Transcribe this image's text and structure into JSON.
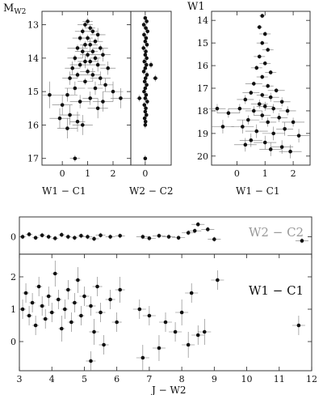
{
  "chart_data": [
    {
      "id": "cmd-mw2",
      "type": "scatter",
      "title": "",
      "ylabel": "M",
      "ylabel_sub": "W2",
      "xlabel": "W1 − C1",
      "xlim": [
        -0.8,
        2.7
      ],
      "ylim": [
        17.2,
        12.6
      ],
      "xticks": [
        0,
        1,
        2
      ],
      "yticks": [
        13,
        14,
        15,
        16,
        17
      ],
      "xtick_labels": [
        "0",
        "1",
        "2"
      ],
      "ytick_labels": [
        "13",
        "14",
        "15",
        "16",
        "17"
      ],
      "points": [
        [
          1.0,
          12.9,
          0.2,
          0.1
        ],
        [
          0.9,
          13.0,
          0.3,
          0.1
        ],
        [
          1.1,
          13.1,
          0.2,
          0.1
        ],
        [
          0.8,
          13.2,
          0.3,
          0.1
        ],
        [
          1.2,
          13.2,
          0.2,
          0.1
        ],
        [
          1.4,
          13.3,
          0.3,
          0.2
        ],
        [
          0.7,
          13.4,
          0.3,
          0.1
        ],
        [
          1.0,
          13.4,
          0.2,
          0.1
        ],
        [
          1.3,
          13.5,
          0.3,
          0.1
        ],
        [
          0.9,
          13.6,
          0.2,
          0.1
        ],
        [
          1.1,
          13.6,
          0.3,
          0.2
        ],
        [
          0.6,
          13.7,
          0.4,
          0.1
        ],
        [
          1.5,
          13.7,
          0.3,
          0.1
        ],
        [
          0.8,
          13.8,
          0.3,
          0.2
        ],
        [
          1.2,
          13.8,
          0.2,
          0.1
        ],
        [
          1.0,
          13.9,
          0.3,
          0.1
        ],
        [
          1.6,
          13.9,
          0.3,
          0.2
        ],
        [
          0.5,
          14.0,
          0.3,
          0.1
        ],
        [
          1.3,
          14.0,
          0.2,
          0.1
        ],
        [
          0.9,
          14.1,
          0.3,
          0.2
        ],
        [
          1.1,
          14.1,
          0.3,
          0.1
        ],
        [
          1.4,
          14.2,
          0.3,
          0.2
        ],
        [
          0.7,
          14.2,
          0.4,
          0.1
        ],
        [
          1.8,
          14.3,
          0.3,
          0.2
        ],
        [
          0.4,
          14.3,
          0.3,
          0.2
        ],
        [
          1.0,
          14.4,
          0.3,
          0.1
        ],
        [
          1.2,
          14.5,
          0.3,
          0.2
        ],
        [
          0.6,
          14.5,
          0.3,
          0.1
        ],
        [
          1.5,
          14.6,
          0.4,
          0.2
        ],
        [
          0.3,
          14.6,
          0.3,
          0.2
        ],
        [
          0.9,
          14.7,
          0.3,
          0.1
        ],
        [
          1.7,
          14.8,
          0.3,
          0.2
        ],
        [
          0.5,
          14.9,
          0.4,
          0.2
        ],
        [
          1.3,
          14.9,
          0.3,
          0.2
        ],
        [
          2.0,
          15.0,
          0.4,
          0.3
        ],
        [
          0.2,
          15.1,
          0.4,
          0.2
        ],
        [
          1.1,
          15.2,
          0.3,
          0.2
        ],
        [
          0.7,
          15.3,
          0.4,
          0.2
        ],
        [
          1.6,
          15.3,
          0.4,
          0.3
        ],
        [
          0.0,
          15.4,
          0.4,
          0.3
        ],
        [
          -0.1,
          15.8,
          0.4,
          0.3
        ],
        [
          0.3,
          15.7,
          0.4,
          0.3
        ],
        [
          0.6,
          15.9,
          0.3,
          0.3
        ],
        [
          1.4,
          15.5,
          0.4,
          0.3
        ],
        [
          -0.5,
          15.1,
          0.3,
          0.4
        ],
        [
          2.3,
          15.2,
          0.4,
          0.3
        ],
        [
          0.8,
          16.0,
          0.4,
          0.3
        ],
        [
          0.2,
          16.1,
          0.4,
          0.3
        ],
        [
          0.5,
          17.0,
          0.2,
          0.1
        ]
      ]
    },
    {
      "id": "cmd-w2c2",
      "type": "scatter",
      "title": "",
      "xlabel": "W2 − C2",
      "xlim": [
        -0.5,
        0.9
      ],
      "ylim": [
        17.2,
        12.6
      ],
      "xticks": [
        0
      ],
      "xtick_labels": [
        "0"
      ],
      "points": [
        [
          0.0,
          12.8,
          0.05,
          0.1
        ],
        [
          0.05,
          12.9,
          0.05,
          0.1
        ],
        [
          -0.05,
          13.0,
          0.05,
          0.1
        ],
        [
          0.02,
          13.1,
          0.05,
          0.1
        ],
        [
          0.08,
          13.2,
          0.05,
          0.1
        ],
        [
          -0.04,
          13.3,
          0.05,
          0.1
        ],
        [
          0.03,
          13.4,
          0.05,
          0.1
        ],
        [
          0.0,
          13.5,
          0.05,
          0.1
        ],
        [
          0.06,
          13.6,
          0.05,
          0.1
        ],
        [
          -0.06,
          13.7,
          0.05,
          0.1
        ],
        [
          0.02,
          13.8,
          0.05,
          0.1
        ],
        [
          0.0,
          13.9,
          0.05,
          0.1
        ],
        [
          0.05,
          14.0,
          0.05,
          0.1
        ],
        [
          -0.03,
          14.1,
          0.05,
          0.1
        ],
        [
          0.04,
          14.2,
          0.05,
          0.1
        ],
        [
          0.0,
          14.3,
          0.05,
          0.1
        ],
        [
          -0.05,
          14.4,
          0.05,
          0.1
        ],
        [
          0.06,
          14.5,
          0.05,
          0.1
        ],
        [
          0.01,
          14.6,
          0.05,
          0.1
        ],
        [
          -0.02,
          14.7,
          0.05,
          0.1
        ],
        [
          0.05,
          14.8,
          0.05,
          0.1
        ],
        [
          0.0,
          14.9,
          0.05,
          0.1
        ],
        [
          -0.04,
          15.0,
          0.05,
          0.1
        ],
        [
          0.03,
          15.1,
          0.05,
          0.1
        ],
        [
          0.0,
          15.2,
          0.05,
          0.1
        ],
        [
          0.07,
          15.3,
          0.05,
          0.1
        ],
        [
          -0.03,
          15.4,
          0.05,
          0.1
        ],
        [
          0.02,
          15.5,
          0.05,
          0.1
        ],
        [
          0.0,
          15.6,
          0.05,
          0.1
        ],
        [
          0.04,
          15.7,
          0.05,
          0.1
        ],
        [
          -0.02,
          15.8,
          0.05,
          0.1
        ],
        [
          0.01,
          15.9,
          0.05,
          0.1
        ],
        [
          0.0,
          16.0,
          0.05,
          0.1
        ],
        [
          0.2,
          14.2,
          0.08,
          0.1
        ],
        [
          0.35,
          14.6,
          0.1,
          0.1
        ],
        [
          -0.2,
          15.2,
          0.1,
          0.1
        ],
        [
          0.0,
          17.0,
          0.05,
          0.1
        ]
      ]
    },
    {
      "id": "cmd-w1",
      "type": "scatter",
      "title": "",
      "ylabel": "W1",
      "xlabel": "W1 − C1",
      "xlim": [
        -0.9,
        2.6
      ],
      "ylim": [
        20.4,
        13.6
      ],
      "xticks": [
        0,
        1,
        2
      ],
      "yticks": [
        14,
        15,
        16,
        17,
        18,
        19,
        20
      ],
      "xtick_labels": [
        "0",
        "1",
        "2"
      ],
      "ytick_labels": [
        "14",
        "15",
        "16",
        "17",
        "18",
        "19",
        "20"
      ],
      "points": [
        [
          0.9,
          13.8,
          0.1,
          0.1
        ],
        [
          0.8,
          14.3,
          0.1,
          0.1
        ],
        [
          1.0,
          14.6,
          0.2,
          0.1
        ],
        [
          0.9,
          15.0,
          0.2,
          0.1
        ],
        [
          1.1,
          15.3,
          0.2,
          0.1
        ],
        [
          0.8,
          15.6,
          0.2,
          0.1
        ],
        [
          1.0,
          15.9,
          0.2,
          0.1
        ],
        [
          0.7,
          16.1,
          0.2,
          0.1
        ],
        [
          1.2,
          16.3,
          0.2,
          0.1
        ],
        [
          0.9,
          16.5,
          0.2,
          0.1
        ],
        [
          0.6,
          16.8,
          0.3,
          0.1
        ],
        [
          1.1,
          16.9,
          0.2,
          0.1
        ],
        [
          1.4,
          17.1,
          0.3,
          0.1
        ],
        [
          0.5,
          17.2,
          0.3,
          0.1
        ],
        [
          0.9,
          17.3,
          0.2,
          0.1
        ],
        [
          1.2,
          17.4,
          0.3,
          0.2
        ],
        [
          0.3,
          17.5,
          0.3,
          0.2
        ],
        [
          1.6,
          17.6,
          0.3,
          0.2
        ],
        [
          0.8,
          17.7,
          0.3,
          0.2
        ],
        [
          1.0,
          17.8,
          0.3,
          0.2
        ],
        [
          0.1,
          17.9,
          0.4,
          0.2
        ],
        [
          1.3,
          17.9,
          0.3,
          0.2
        ],
        [
          0.6,
          18.0,
          0.3,
          0.2
        ],
        [
          1.8,
          18.0,
          0.3,
          0.2
        ],
        [
          -0.3,
          18.1,
          0.4,
          0.2
        ],
        [
          0.9,
          18.2,
          0.3,
          0.2
        ],
        [
          1.5,
          18.3,
          0.3,
          0.2
        ],
        [
          0.4,
          18.4,
          0.4,
          0.2
        ],
        [
          1.1,
          18.5,
          0.3,
          0.2
        ],
        [
          2.0,
          18.5,
          0.4,
          0.2
        ],
        [
          0.2,
          18.7,
          0.4,
          0.3
        ],
        [
          1.7,
          18.8,
          0.3,
          0.3
        ],
        [
          0.7,
          18.9,
          0.4,
          0.3
        ],
        [
          1.3,
          19.0,
          0.4,
          0.3
        ],
        [
          -0.5,
          18.7,
          0.4,
          0.3
        ],
        [
          2.2,
          19.1,
          0.4,
          0.3
        ],
        [
          0.5,
          19.3,
          0.4,
          0.3
        ],
        [
          1.0,
          19.4,
          0.4,
          0.3
        ],
        [
          1.6,
          19.6,
          0.4,
          0.3
        ],
        [
          -0.7,
          17.9,
          0.3,
          0.2
        ],
        [
          1.9,
          19.8,
          0.4,
          0.3
        ],
        [
          0.3,
          19.5,
          0.4,
          0.3
        ],
        [
          1.2,
          19.7,
          0.4,
          0.3
        ]
      ]
    },
    {
      "id": "jw2-w2c2",
      "type": "scatter",
      "title": "",
      "label": "W2 − C2",
      "xlim": [
        3,
        12
      ],
      "ylim": [
        -0.35,
        0.4
      ],
      "yticks": [
        0
      ],
      "ytick_labels": [
        "0"
      ],
      "points": [
        [
          3.1,
          0.0,
          0.1,
          0.05
        ],
        [
          3.3,
          0.05,
          0.1,
          0.05
        ],
        [
          3.5,
          -0.02,
          0.1,
          0.05
        ],
        [
          3.7,
          0.03,
          0.1,
          0.05
        ],
        [
          3.9,
          0.0,
          0.1,
          0.05
        ],
        [
          4.1,
          -0.03,
          0.1,
          0.05
        ],
        [
          4.3,
          0.04,
          0.1,
          0.05
        ],
        [
          4.5,
          0.0,
          0.1,
          0.05
        ],
        [
          4.7,
          -0.02,
          0.1,
          0.05
        ],
        [
          4.9,
          0.02,
          0.1,
          0.05
        ],
        [
          5.1,
          0.0,
          0.15,
          0.05
        ],
        [
          5.3,
          -0.04,
          0.15,
          0.05
        ],
        [
          5.5,
          0.03,
          0.15,
          0.05
        ],
        [
          5.8,
          0.0,
          0.15,
          0.05
        ],
        [
          6.1,
          0.02,
          0.15,
          0.05
        ],
        [
          6.8,
          0.0,
          0.2,
          0.05
        ],
        [
          7.0,
          -0.03,
          0.2,
          0.05
        ],
        [
          7.3,
          0.02,
          0.2,
          0.05
        ],
        [
          7.6,
          0.0,
          0.2,
          0.05
        ],
        [
          7.9,
          -0.02,
          0.2,
          0.05
        ],
        [
          8.2,
          0.08,
          0.2,
          0.05
        ],
        [
          8.5,
          0.25,
          0.2,
          0.05
        ],
        [
          8.8,
          0.15,
          0.2,
          0.05
        ],
        [
          9.0,
          -0.05,
          0.2,
          0.05
        ],
        [
          8.4,
          0.12,
          0.2,
          0.05
        ],
        [
          11.7,
          -0.08,
          0.2,
          0.05
        ]
      ]
    },
    {
      "id": "jw2-w1c1",
      "type": "scatter",
      "title": "",
      "label": "W1 − C1",
      "xlabel": "J − W2",
      "xlim": [
        3,
        12
      ],
      "ylim": [
        -0.9,
        2.7
      ],
      "xticks": [
        3,
        4,
        5,
        6,
        7,
        8,
        9,
        10,
        11,
        12
      ],
      "xtick_labels": [
        "3",
        "4",
        "5",
        "6",
        "7",
        "8",
        "9",
        "10",
        "11",
        "12"
      ],
      "yticks": [
        0,
        1,
        2
      ],
      "ytick_labels": [
        "0",
        "1",
        "2"
      ],
      "points": [
        [
          3.1,
          1.0,
          0.1,
          0.3
        ],
        [
          3.2,
          1.5,
          0.1,
          0.3
        ],
        [
          3.3,
          0.8,
          0.1,
          0.3
        ],
        [
          3.4,
          1.2,
          0.1,
          0.3
        ],
        [
          3.5,
          0.5,
          0.1,
          0.3
        ],
        [
          3.6,
          1.7,
          0.1,
          0.3
        ],
        [
          3.7,
          1.1,
          0.1,
          0.3
        ],
        [
          3.8,
          0.7,
          0.1,
          0.3
        ],
        [
          3.9,
          1.4,
          0.1,
          0.3
        ],
        [
          4.0,
          0.9,
          0.1,
          0.3
        ],
        [
          4.1,
          2.1,
          0.1,
          0.4
        ],
        [
          4.2,
          1.3,
          0.1,
          0.3
        ],
        [
          4.3,
          0.4,
          0.1,
          0.4
        ],
        [
          4.4,
          1.0,
          0.1,
          0.3
        ],
        [
          4.5,
          1.6,
          0.1,
          0.3
        ],
        [
          4.6,
          0.6,
          0.1,
          0.3
        ],
        [
          4.7,
          1.2,
          0.1,
          0.3
        ],
        [
          4.8,
          1.9,
          0.1,
          0.4
        ],
        [
          4.9,
          0.8,
          0.1,
          0.3
        ],
        [
          5.0,
          1.4,
          0.15,
          0.3
        ],
        [
          5.2,
          1.1,
          0.15,
          0.3
        ],
        [
          5.3,
          0.3,
          0.15,
          0.4
        ],
        [
          5.4,
          1.7,
          0.15,
          0.3
        ],
        [
          5.5,
          0.9,
          0.15,
          0.3
        ],
        [
          5.6,
          -0.1,
          0.15,
          0.3
        ],
        [
          5.8,
          1.3,
          0.15,
          0.3
        ],
        [
          6.0,
          0.6,
          0.15,
          0.3
        ],
        [
          6.1,
          1.6,
          0.15,
          0.4
        ],
        [
          5.2,
          -0.6,
          0.15,
          0.3
        ],
        [
          6.7,
          1.0,
          0.2,
          0.3
        ],
        [
          6.8,
          -0.5,
          0.2,
          0.4
        ],
        [
          7.0,
          0.8,
          0.2,
          0.3
        ],
        [
          7.3,
          -0.2,
          0.2,
          0.4
        ],
        [
          7.5,
          0.6,
          0.2,
          0.3
        ],
        [
          7.8,
          0.3,
          0.2,
          0.3
        ],
        [
          8.0,
          0.9,
          0.2,
          0.4
        ],
        [
          8.2,
          -0.1,
          0.2,
          0.4
        ],
        [
          8.3,
          1.5,
          0.2,
          0.3
        ],
        [
          8.5,
          0.2,
          0.2,
          0.3
        ],
        [
          8.7,
          0.3,
          0.2,
          0.4
        ],
        [
          9.1,
          1.9,
          0.2,
          0.3
        ],
        [
          11.6,
          0.5,
          0.2,
          0.3
        ]
      ]
    }
  ]
}
